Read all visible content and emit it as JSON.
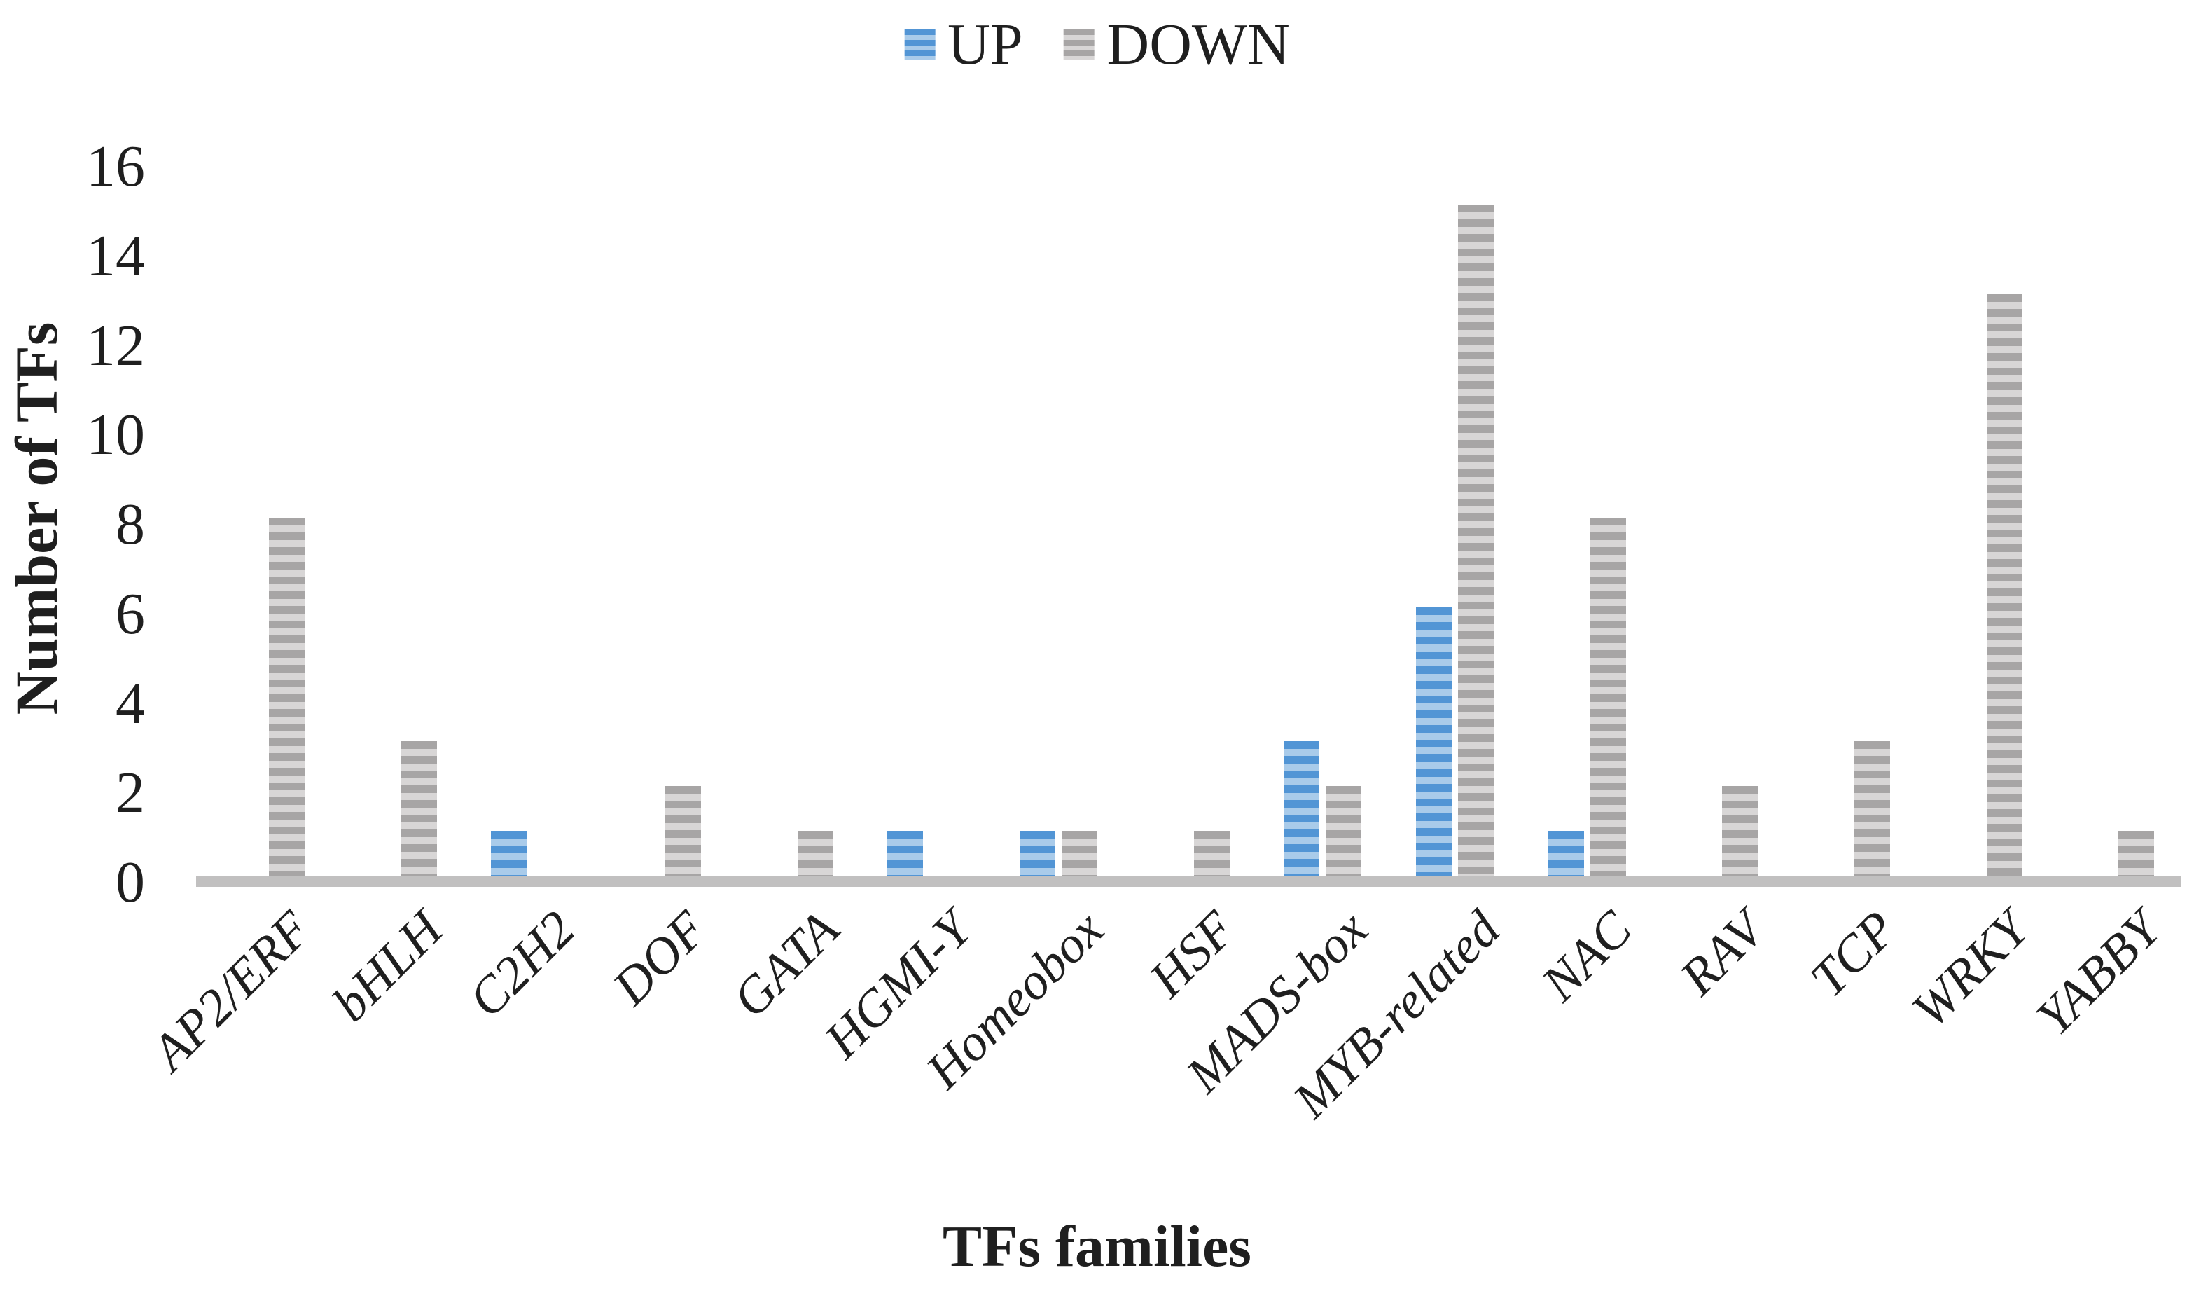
{
  "chart_data": {
    "type": "bar",
    "title": "",
    "xlabel": "TFs families",
    "ylabel": "Number of TFs",
    "ylim": [
      0,
      16
    ],
    "yticks": [
      0,
      2,
      4,
      6,
      8,
      10,
      12,
      14,
      16
    ],
    "grid": false,
    "legend_position": "top-center",
    "categories": [
      "AP2/ERF",
      "bHLH",
      "C2H2",
      "DOF",
      "GATA",
      "HGMI-Y",
      "Homeobox",
      "HSF",
      "MADS-box",
      "MYB-related",
      "NAC",
      "RAV",
      "TCP",
      "WRKY",
      "YABBY"
    ],
    "series": [
      {
        "name": "UP",
        "values": [
          0,
          0,
          1,
          0,
          0,
          1,
          1,
          0,
          3,
          6,
          1,
          0,
          0,
          0,
          0
        ],
        "color_dark": "#5295d5",
        "color_light": "#a9cbea"
      },
      {
        "name": "DOWN",
        "values": [
          8,
          3,
          0,
          2,
          1,
          0,
          1,
          1,
          2,
          15,
          8,
          2,
          3,
          13,
          1
        ],
        "color_dark": "#a7a5a5",
        "color_light": "#d8d6d6"
      }
    ],
    "colors": {
      "axis_line": "#c1c0c0",
      "text": "#1f1f1f"
    }
  }
}
